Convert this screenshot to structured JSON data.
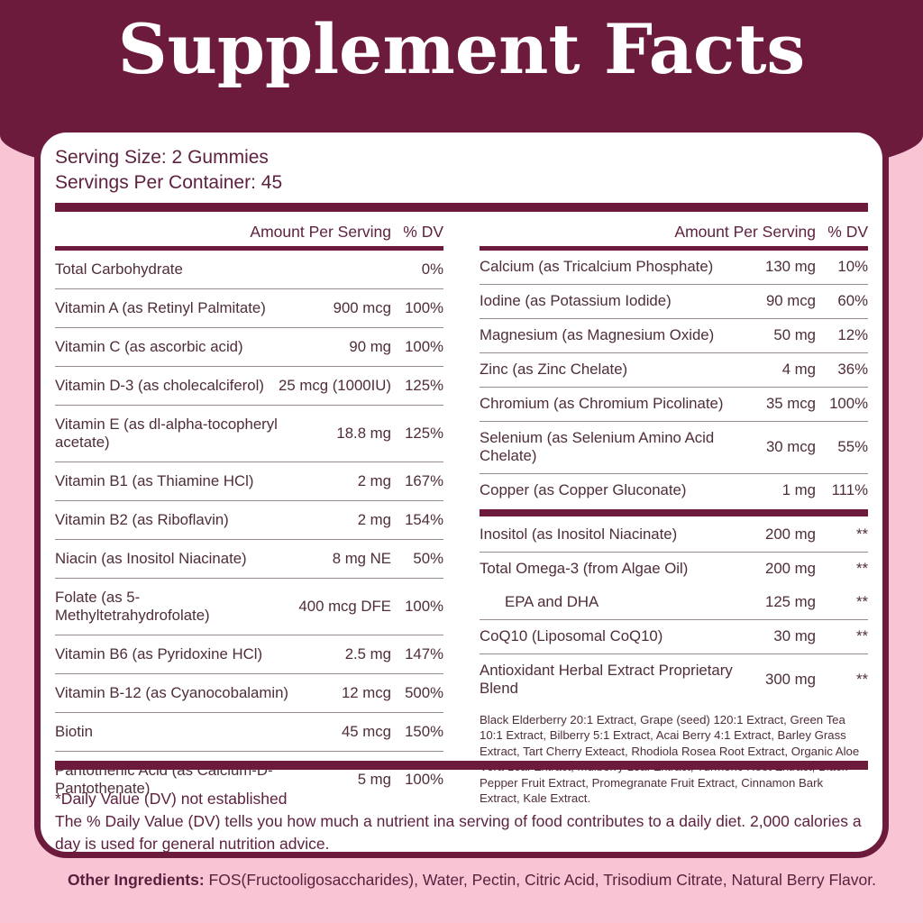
{
  "title": "Supplement Facts",
  "serving": {
    "size": "Serving Size: 2 Gummies",
    "per_container": "Servings Per Container: 45"
  },
  "columns_header": {
    "amount": "Amount Per Serving",
    "dv": "% DV"
  },
  "left_table": {
    "rows": [
      {
        "name": "Total Carbohydrate",
        "amount": "",
        "dv": "0%"
      },
      {
        "name": "Vitamin A (as Retinyl Palmitate)",
        "amount": "900 mcg",
        "dv": "100%"
      },
      {
        "name": "Vitamin C (as ascorbic acid)",
        "amount": "90 mg",
        "dv": "100%"
      },
      {
        "name": "Vitamin D-3 (as cholecalciferol)",
        "amount": "25 mcg (1000IU)",
        "dv": "125%"
      },
      {
        "name": "Vitamin E (as dl-alpha-tocopheryl acetate)",
        "amount": "18.8 mg",
        "dv": "125%"
      },
      {
        "name": "Vitamin B1 (as Thiamine HCl)",
        "amount": "2 mg",
        "dv": "167%"
      },
      {
        "name": "Vitamin B2 (as Riboflavin)",
        "amount": "2 mg",
        "dv": "154%"
      },
      {
        "name": "Niacin (as Inositol Niacinate)",
        "amount": "8 mg NE",
        "dv": "50%"
      },
      {
        "name": "Folate (as 5-Methyltetrahydrofolate)",
        "amount": "400 mcg DFE",
        "dv": "100%"
      },
      {
        "name": "Vitamin B6 (as Pyridoxine HCl)",
        "amount": "2.5 mg",
        "dv": "147%"
      },
      {
        "name": "Vitamin B-12 (as Cyanocobalamin)",
        "amount": "12 mcg",
        "dv": "500%"
      },
      {
        "name": "Biotin",
        "amount": "45 mcg",
        "dv": "150%"
      },
      {
        "name": "Pantothenic Acid (as Calcium-D-Pantothenate)",
        "amount": "5 mg",
        "dv": "100%"
      }
    ]
  },
  "right_table": {
    "rows": [
      {
        "name": "Calcium (as Tricalcium Phosphate)",
        "amount": "130 mg",
        "dv": "10%"
      },
      {
        "name": "Iodine (as Potassium Iodide)",
        "amount": "90 mcg",
        "dv": "60%"
      },
      {
        "name": "Magnesium (as Magnesium Oxide)",
        "amount": "50 mg",
        "dv": "12%"
      },
      {
        "name": "Zinc (as Zinc Chelate)",
        "amount": "4 mg",
        "dv": "36%"
      },
      {
        "name": "Chromium (as Chromium Picolinate)",
        "amount": "35 mcg",
        "dv": "100%"
      },
      {
        "name": "Selenium (as Selenium Amino Acid Chelate)",
        "amount": "30 mcg",
        "dv": "55%"
      },
      {
        "name": "Copper (as Copper Gluconate)",
        "amount": "1 mg",
        "dv": "111%"
      },
      {
        "name": "Inositol (as Inositol Niacinate)",
        "amount": "200 mg",
        "dv": "**"
      },
      {
        "name": "Total Omega-3 (from Algae Oil)",
        "amount": "200 mg",
        "dv": "**"
      },
      {
        "name": "EPA and DHA",
        "amount": "125 mg",
        "dv": "**"
      },
      {
        "name": "CoQ10 (Liposomal CoQ10)",
        "amount": "30 mg",
        "dv": "**"
      },
      {
        "name": "Antioxidant Herbal Extract Proprietary Blend",
        "amount": "300 mg",
        "dv": "**"
      }
    ],
    "blend_description": "Black Elderberry 20:1 Extract, Grape (seed) 120:1 Extract, Green Tea 10:1 Extract, Bilberry 5:1 Extract, Acai Berry 4:1 Extract, Barley Grass Extract, Tart Cherry Exteact, Rhodiola Rosea Root Extract, Organic Aloe Vera Leaf Extract, Mulberry Leaf Extract, Turmeric Root Extract, Black Pepper Fruit Extract, Promegranate Fruit Extract, Cinnamon Bark Extract, Kale Extract."
  },
  "footnotes": {
    "line1": "*Daily Value (DV) not established",
    "line2": "The % Daily Value (DV) tells you how much a nutrient ina serving of food contributes to a daily diet. 2,000 calories a day is used for general nutrition advice."
  },
  "other_ingredients": {
    "label": "Other Ingredients:",
    "text": " FOS(Fructooligosaccharides), Water, Pectin, Citric Acid, Trisodium Citrate, Natural Berry Flavor."
  },
  "colors": {
    "maroon": "#6d1b3c",
    "pink": "#f9c5d4",
    "heading_text": "#5e2140",
    "row_text": "#4f2d3a",
    "divider": "#968b90",
    "title_text": "#ffffff",
    "card_bg": "#ffffff"
  }
}
